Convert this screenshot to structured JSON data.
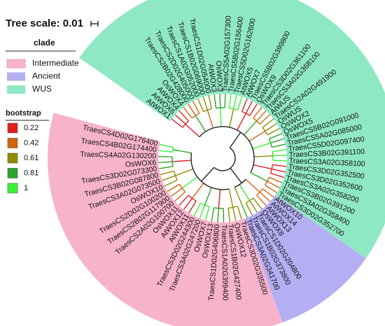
{
  "title": "Tree scale: 0.01",
  "legend": {
    "clade_title": "clade",
    "clades": [
      {
        "name": "Intermediate",
        "color": "#f7b3cb"
      },
      {
        "name": "Ancient",
        "color": "#b4aef2"
      },
      {
        "name": "WUS",
        "color": "#8fe8c4"
      }
    ],
    "bootstrap_title": "bootstrap",
    "bootstrap": [
      {
        "label": "0.22",
        "color": "#e0201c"
      },
      {
        "label": "0.42",
        "color": "#d2650f"
      },
      {
        "label": "0.61",
        "color": "#8f8a00"
      },
      {
        "label": "0.81",
        "color": "#2aa52a"
      },
      {
        "label": "1",
        "color": "#3af23a"
      }
    ]
  },
  "clade_leaves": [
    {
      "clade": "WUS",
      "leaves": [
        "AtWOX1",
        "AtWOX6",
        "AtWOX4",
        "OsWOX4",
        "TraesCS2B02G428000",
        "TraesCS2D02G405000",
        "TraesCS1A02G052000",
        "TraesCS1B02G069000",
        "TraesCS1D02G054000",
        "AtWOX3",
        "OsWOX3",
        "TraesCS5A02G157300",
        "TraesCS5B02G156400",
        "TraesCS5D02G162600",
        "AtWOX5",
        "AtWOX7",
        "TraesCS5B02G399800",
        "OsWOX9",
        "TraesCS3D02G361100",
        "TraesCS3A02G368100",
        "AtWUS",
        "TraesCS2A02G491900",
        "OsWUS",
        "OsWOX2",
        "OsWOX5",
        "TraesCS5B02G091000",
        "TraesCS5A02G085000",
        "TraesCS5D02G097400",
        "TraesCS3B02G391100",
        "TraesCS3A02G358100",
        "TraesCS3D02G352500",
        "TraesCS3D02G352600",
        "TraesCS3A02G358200",
        "TraesCS3B02G391200",
        "TraesCS3A02G358400",
        "TraesCS3D02G352700"
      ]
    },
    {
      "clade": "Ancient",
      "leaves": [
        "AtWOX10",
        "AtWOX14",
        "AtWOX13",
        "OsWOX8",
        "TraesCS1D02G204800",
        "TraesCS1B02G373800",
        "TraesCS3A02G341700"
      ]
    },
    {
      "clade": "Intermediate",
      "leaves": [
        "TraesCS3D02G335500",
        "OsWOX12",
        "TraesCS1B02G427400",
        "TraesCS1A02G399400",
        "TraesCS1D02G406800",
        "OsWOX13",
        "OsWOX7",
        "TraesCS3A02G247200",
        "TraesCS3D02G244300",
        "AtWOX11",
        "AtWOX12",
        "OsWOX11",
        "TraesCS2A02G100700",
        "TraesCS2B02G117900",
        "TraesCS2D02G100200",
        "OsWOX10",
        "TraesCS3A02G073500",
        "TraesCS3B02G087800",
        "TraesCS3D02G073300",
        "OsWOX6",
        "TraesCS4A02G130200",
        "TraesCS4B02G174400",
        "TraesCS4D02G176400"
      ]
    }
  ]
}
